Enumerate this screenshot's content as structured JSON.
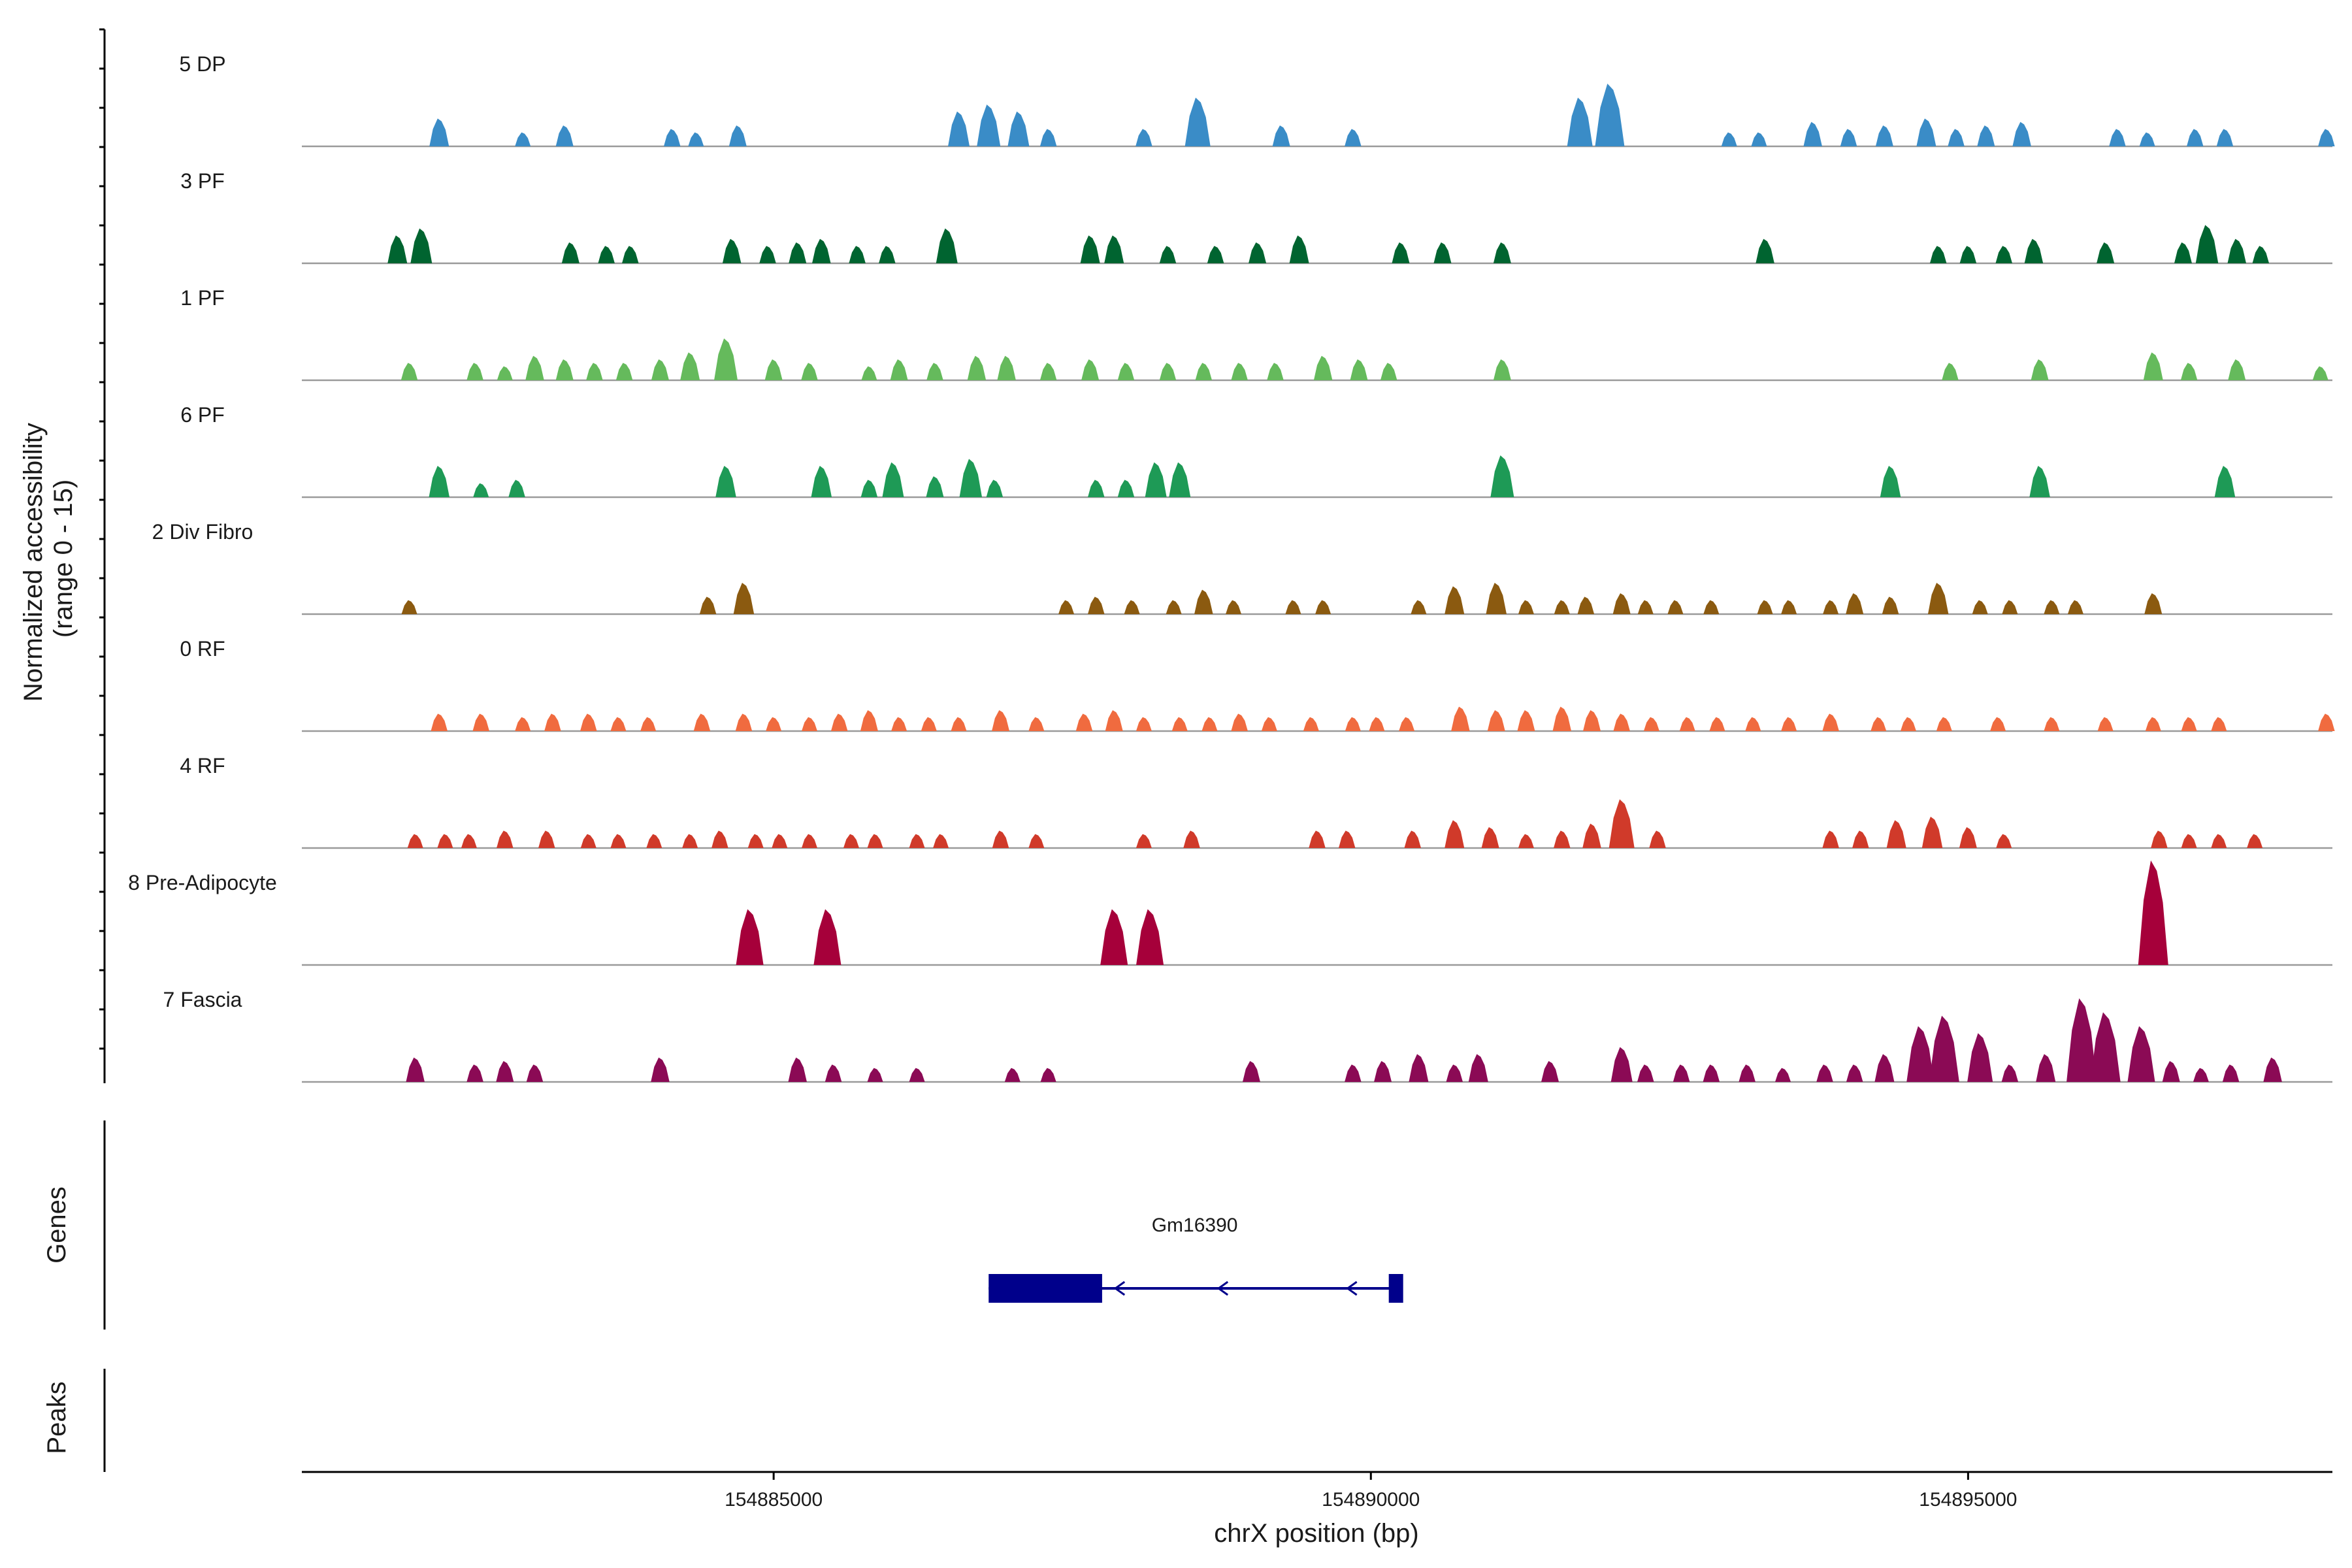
{
  "chart_data": {
    "type": "area",
    "title": "",
    "ylabel_line1": "Normalized accessibility",
    "ylabel_line2": "(range 0 - 15)",
    "ylim": [
      0,
      15
    ],
    "xlabel": "chrX position (bp)",
    "xlim": [
      154881050,
      154898050
    ],
    "xticks": [
      {
        "value": 154885000,
        "label": "154885000"
      },
      {
        "value": 154890000,
        "label": "154890000"
      },
      {
        "value": 154895000,
        "label": "154895000"
      }
    ],
    "series": [
      {
        "name": "5 DP",
        "color": "#3a8cc7",
        "peaks": [
          [
            154882200,
            4
          ],
          [
            154882900,
            2
          ],
          [
            154883250,
            3
          ],
          [
            154884150,
            2.5
          ],
          [
            154884350,
            2
          ],
          [
            154884700,
            3
          ],
          [
            154886550,
            5
          ],
          [
            154886800,
            6
          ],
          [
            154887050,
            5
          ],
          [
            154887300,
            2.5
          ],
          [
            154888100,
            2.5
          ],
          [
            154888550,
            7
          ],
          [
            154889250,
            3
          ],
          [
            154889850,
            2.5
          ],
          [
            154891750,
            7
          ],
          [
            154892000,
            9
          ],
          [
            154893000,
            2
          ],
          [
            154893250,
            2
          ],
          [
            154893700,
            3.5
          ],
          [
            154894000,
            2.5
          ],
          [
            154894300,
            3
          ],
          [
            154894650,
            4
          ],
          [
            154894900,
            2.5
          ],
          [
            154895150,
            3
          ],
          [
            154895450,
            3.5
          ],
          [
            154896250,
            2.5
          ],
          [
            154896500,
            2
          ],
          [
            154896900,
            2.5
          ],
          [
            154897150,
            2.5
          ],
          [
            154898000,
            2.5
          ]
        ]
      },
      {
        "name": "3 PF",
        "color": "#006430",
        "peaks": [
          [
            154881850,
            4
          ],
          [
            154882050,
            5
          ],
          [
            154883300,
            3
          ],
          [
            154883600,
            2.5
          ],
          [
            154883800,
            2.5
          ],
          [
            154884650,
            3.5
          ],
          [
            154884950,
            2.5
          ],
          [
            154885200,
            3
          ],
          [
            154885400,
            3.5
          ],
          [
            154885700,
            2.5
          ],
          [
            154885950,
            2.5
          ],
          [
            154886450,
            5
          ],
          [
            154887650,
            4
          ],
          [
            154887850,
            4
          ],
          [
            154888300,
            2.5
          ],
          [
            154888700,
            2.5
          ],
          [
            154889050,
            3
          ],
          [
            154889400,
            4
          ],
          [
            154890250,
            3
          ],
          [
            154890600,
            3
          ],
          [
            154891100,
            3
          ],
          [
            154893300,
            3.5
          ],
          [
            154894750,
            2.5
          ],
          [
            154895000,
            2.5
          ],
          [
            154895300,
            2.5
          ],
          [
            154895550,
            3.5
          ],
          [
            154896150,
            3
          ],
          [
            154896800,
            3
          ],
          [
            154897000,
            5.5
          ],
          [
            154897250,
            3.5
          ],
          [
            154897450,
            2.5
          ]
        ]
      },
      {
        "name": "1 PF",
        "color": "#65ba5c",
        "peaks": [
          [
            154881950,
            2.5
          ],
          [
            154882500,
            2.5
          ],
          [
            154882750,
            2
          ],
          [
            154883000,
            3.5
          ],
          [
            154883250,
            3
          ],
          [
            154883500,
            2.5
          ],
          [
            154883750,
            2.5
          ],
          [
            154884050,
            3
          ],
          [
            154884300,
            4
          ],
          [
            154884600,
            6
          ],
          [
            154885000,
            3
          ],
          [
            154885300,
            2.5
          ],
          [
            154885800,
            2
          ],
          [
            154886050,
            3
          ],
          [
            154886350,
            2.5
          ],
          [
            154886700,
            3.5
          ],
          [
            154886950,
            3.5
          ],
          [
            154887300,
            2.5
          ],
          [
            154887650,
            3
          ],
          [
            154887950,
            2.5
          ],
          [
            154888300,
            2.5
          ],
          [
            154888600,
            2.5
          ],
          [
            154888900,
            2.5
          ],
          [
            154889200,
            2.5
          ],
          [
            154889600,
            3.5
          ],
          [
            154889900,
            3
          ],
          [
            154890150,
            2.5
          ],
          [
            154891100,
            3
          ],
          [
            154894850,
            2.5
          ],
          [
            154895600,
            3
          ],
          [
            154896550,
            4
          ],
          [
            154896850,
            2.5
          ],
          [
            154897250,
            3
          ],
          [
            154897950,
            2
          ]
        ]
      },
      {
        "name": "6 PF",
        "color": "#1e9a56",
        "peaks": [
          [
            154882200,
            4.5
          ],
          [
            154882550,
            2
          ],
          [
            154882850,
            2.5
          ],
          [
            154884600,
            4.5
          ],
          [
            154885400,
            4.5
          ],
          [
            154885800,
            2.5
          ],
          [
            154886000,
            5
          ],
          [
            154886350,
            3
          ],
          [
            154886650,
            5.5
          ],
          [
            154886850,
            2.5
          ],
          [
            154887700,
            2.5
          ],
          [
            154887950,
            2.5
          ],
          [
            154888200,
            5
          ],
          [
            154888400,
            5
          ],
          [
            154891100,
            6
          ],
          [
            154894350,
            4.5
          ],
          [
            154895600,
            4.5
          ],
          [
            154897150,
            4.5
          ]
        ]
      },
      {
        "name": "2 Div Fibro",
        "color": "#8b5a10",
        "peaks": [
          [
            154881950,
            2
          ],
          [
            154884450,
            2.5
          ],
          [
            154884750,
            4.5
          ],
          [
            154887450,
            2
          ],
          [
            154887700,
            2.5
          ],
          [
            154888000,
            2
          ],
          [
            154888350,
            2
          ],
          [
            154888600,
            3.5
          ],
          [
            154888850,
            2
          ],
          [
            154889350,
            2
          ],
          [
            154889600,
            2
          ],
          [
            154890400,
            2
          ],
          [
            154890700,
            4
          ],
          [
            154891050,
            4.5
          ],
          [
            154891300,
            2
          ],
          [
            154891600,
            2
          ],
          [
            154891800,
            2.5
          ],
          [
            154892100,
            3
          ],
          [
            154892300,
            2
          ],
          [
            154892550,
            2
          ],
          [
            154892850,
            2
          ],
          [
            154893300,
            2
          ],
          [
            154893500,
            2
          ],
          [
            154893850,
            2
          ],
          [
            154894050,
            3
          ],
          [
            154894350,
            2.5
          ],
          [
            154894750,
            4.5
          ],
          [
            154895100,
            2
          ],
          [
            154895350,
            2
          ],
          [
            154895700,
            2
          ],
          [
            154895900,
            2
          ],
          [
            154896550,
            3
          ]
        ]
      },
      {
        "name": "0 RF",
        "color": "#f06b3f",
        "peaks": [
          [
            154882200,
            2.5
          ],
          [
            154882550,
            2.5
          ],
          [
            154882900,
            2
          ],
          [
            154883150,
            2.5
          ],
          [
            154883450,
            2.5
          ],
          [
            154883700,
            2
          ],
          [
            154883950,
            2
          ],
          [
            154884400,
            2.5
          ],
          [
            154884750,
            2.5
          ],
          [
            154885000,
            2
          ],
          [
            154885300,
            2
          ],
          [
            154885550,
            2.5
          ],
          [
            154885800,
            3
          ],
          [
            154886050,
            2
          ],
          [
            154886300,
            2
          ],
          [
            154886550,
            2
          ],
          [
            154886900,
            3
          ],
          [
            154887200,
            2
          ],
          [
            154887600,
            2.5
          ],
          [
            154887850,
            3
          ],
          [
            154888100,
            2
          ],
          [
            154888400,
            2
          ],
          [
            154888650,
            2
          ],
          [
            154888900,
            2.5
          ],
          [
            154889150,
            2
          ],
          [
            154889500,
            2
          ],
          [
            154889850,
            2
          ],
          [
            154890050,
            2
          ],
          [
            154890300,
            2
          ],
          [
            154890750,
            3.5
          ],
          [
            154891050,
            3
          ],
          [
            154891300,
            3
          ],
          [
            154891600,
            3.5
          ],
          [
            154891850,
            3
          ],
          [
            154892100,
            2.5
          ],
          [
            154892350,
            2
          ],
          [
            154892650,
            2
          ],
          [
            154892900,
            2
          ],
          [
            154893200,
            2
          ],
          [
            154893500,
            2
          ],
          [
            154893850,
            2.5
          ],
          [
            154894250,
            2
          ],
          [
            154894500,
            2
          ],
          [
            154894800,
            2
          ],
          [
            154895250,
            2
          ],
          [
            154895700,
            2
          ],
          [
            154896150,
            2
          ],
          [
            154896550,
            2
          ],
          [
            154896850,
            2
          ],
          [
            154897100,
            2
          ],
          [
            154898000,
            2.5
          ]
        ]
      },
      {
        "name": "4 RF",
        "color": "#d03a2a",
        "peaks": [
          [
            154882000,
            2
          ],
          [
            154882250,
            2
          ],
          [
            154882450,
            2
          ],
          [
            154882750,
            2.5
          ],
          [
            154883100,
            2.5
          ],
          [
            154883450,
            2
          ],
          [
            154883700,
            2
          ],
          [
            154884000,
            2
          ],
          [
            154884300,
            2
          ],
          [
            154884550,
            2.5
          ],
          [
            154884850,
            2
          ],
          [
            154885050,
            2
          ],
          [
            154885300,
            2
          ],
          [
            154885650,
            2
          ],
          [
            154885850,
            2
          ],
          [
            154886200,
            2
          ],
          [
            154886400,
            2
          ],
          [
            154886900,
            2.5
          ],
          [
            154887200,
            2
          ],
          [
            154888100,
            2
          ],
          [
            154888500,
            2.5
          ],
          [
            154889550,
            2.5
          ],
          [
            154889800,
            2.5
          ],
          [
            154890350,
            2.5
          ],
          [
            154890700,
            4
          ],
          [
            154891000,
            3
          ],
          [
            154891300,
            2
          ],
          [
            154891600,
            2.5
          ],
          [
            154891850,
            3.5
          ],
          [
            154892100,
            7
          ],
          [
            154892400,
            2.5
          ],
          [
            154893850,
            2.5
          ],
          [
            154894100,
            2.5
          ],
          [
            154894400,
            4
          ],
          [
            154894700,
            4.5
          ],
          [
            154895000,
            3
          ],
          [
            154895300,
            2
          ],
          [
            154896600,
            2.5
          ],
          [
            154896850,
            2
          ],
          [
            154897100,
            2
          ],
          [
            154897400,
            2
          ]
        ]
      },
      {
        "name": "8 Pre-Adipocyte",
        "color": "#a6003a",
        "peaks": [
          [
            154884800,
            8
          ],
          [
            154885450,
            8
          ],
          [
            154887850,
            8
          ],
          [
            154888150,
            8
          ],
          [
            154896550,
            15
          ]
        ]
      },
      {
        "name": "7 Fascia",
        "color": "#8b0a55",
        "peaks": [
          [
            154882000,
            3.5
          ],
          [
            154882500,
            2.5
          ],
          [
            154882750,
            3
          ],
          [
            154883000,
            2.5
          ],
          [
            154884050,
            3.5
          ],
          [
            154885200,
            3.5
          ],
          [
            154885500,
            2.5
          ],
          [
            154885850,
            2
          ],
          [
            154886200,
            2
          ],
          [
            154887000,
            2
          ],
          [
            154887300,
            2
          ],
          [
            154889000,
            3
          ],
          [
            154889850,
            2.5
          ],
          [
            154890100,
            3
          ],
          [
            154890400,
            4
          ],
          [
            154890700,
            2.5
          ],
          [
            154890900,
            4
          ],
          [
            154891500,
            3
          ],
          [
            154892100,
            5
          ],
          [
            154892300,
            2.5
          ],
          [
            154892600,
            2.5
          ],
          [
            154892850,
            2.5
          ],
          [
            154893150,
            2.5
          ],
          [
            154893450,
            2
          ],
          [
            154893800,
            2.5
          ],
          [
            154894050,
            2.5
          ],
          [
            154894300,
            4
          ],
          [
            154894600,
            8
          ],
          [
            154894800,
            9.5
          ],
          [
            154895100,
            7
          ],
          [
            154895350,
            2.5
          ],
          [
            154895650,
            4
          ],
          [
            154895950,
            12
          ],
          [
            154896150,
            10
          ],
          [
            154896450,
            8
          ],
          [
            154896700,
            3
          ],
          [
            154896950,
            2
          ],
          [
            154897200,
            2.5
          ],
          [
            154897550,
            3.5
          ]
        ]
      }
    ],
    "genes_label": "Genes",
    "peaks_label": "Peaks",
    "gene": {
      "name": "Gm16390",
      "strand": "-",
      "start": 154886800,
      "end": 154890250,
      "exons": [
        [
          154886800,
          154887750
        ],
        [
          154890150,
          154890250
        ]
      ]
    }
  }
}
